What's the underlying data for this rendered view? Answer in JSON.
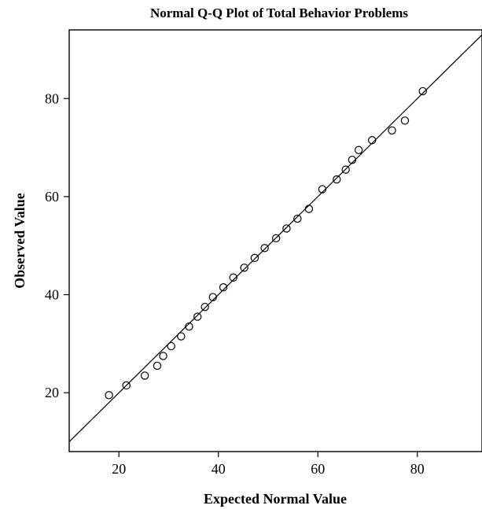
{
  "chart_data": {
    "type": "scatter",
    "title": "Normal Q-Q Plot of Total Behavior Problems",
    "xlabel": "Expected Normal Value",
    "ylabel": "Observed Value",
    "xlim": [
      10,
      93
    ],
    "ylim": [
      8,
      94
    ],
    "xticks": [
      20,
      40,
      60,
      80
    ],
    "yticks": [
      20,
      40,
      60,
      80
    ],
    "grid": false,
    "reference_line": {
      "from": [
        10,
        10
      ],
      "to": [
        93,
        93
      ]
    },
    "series": [
      {
        "marker": "open-circle",
        "points": [
          [
            18.0,
            19.5
          ],
          [
            21.5,
            21.5
          ],
          [
            25.2,
            23.5
          ],
          [
            27.7,
            25.5
          ],
          [
            28.9,
            27.5
          ],
          [
            30.5,
            29.5
          ],
          [
            32.5,
            31.5
          ],
          [
            34.1,
            33.5
          ],
          [
            35.8,
            35.5
          ],
          [
            37.3,
            37.5
          ],
          [
            38.9,
            39.5
          ],
          [
            41.0,
            41.5
          ],
          [
            43.0,
            43.5
          ],
          [
            45.2,
            45.5
          ],
          [
            47.3,
            47.5
          ],
          [
            49.3,
            49.5
          ],
          [
            51.6,
            51.5
          ],
          [
            53.7,
            53.5
          ],
          [
            55.9,
            55.5
          ],
          [
            58.2,
            57.5
          ],
          [
            60.9,
            61.5
          ],
          [
            63.8,
            63.5
          ],
          [
            65.6,
            65.5
          ],
          [
            66.9,
            67.5
          ],
          [
            68.2,
            69.5
          ],
          [
            70.9,
            71.5
          ],
          [
            74.9,
            73.5
          ],
          [
            77.5,
            75.5
          ],
          [
            81.1,
            81.5
          ]
        ]
      }
    ]
  },
  "colors": {
    "ink": "#000000",
    "background": "#ffffff"
  }
}
